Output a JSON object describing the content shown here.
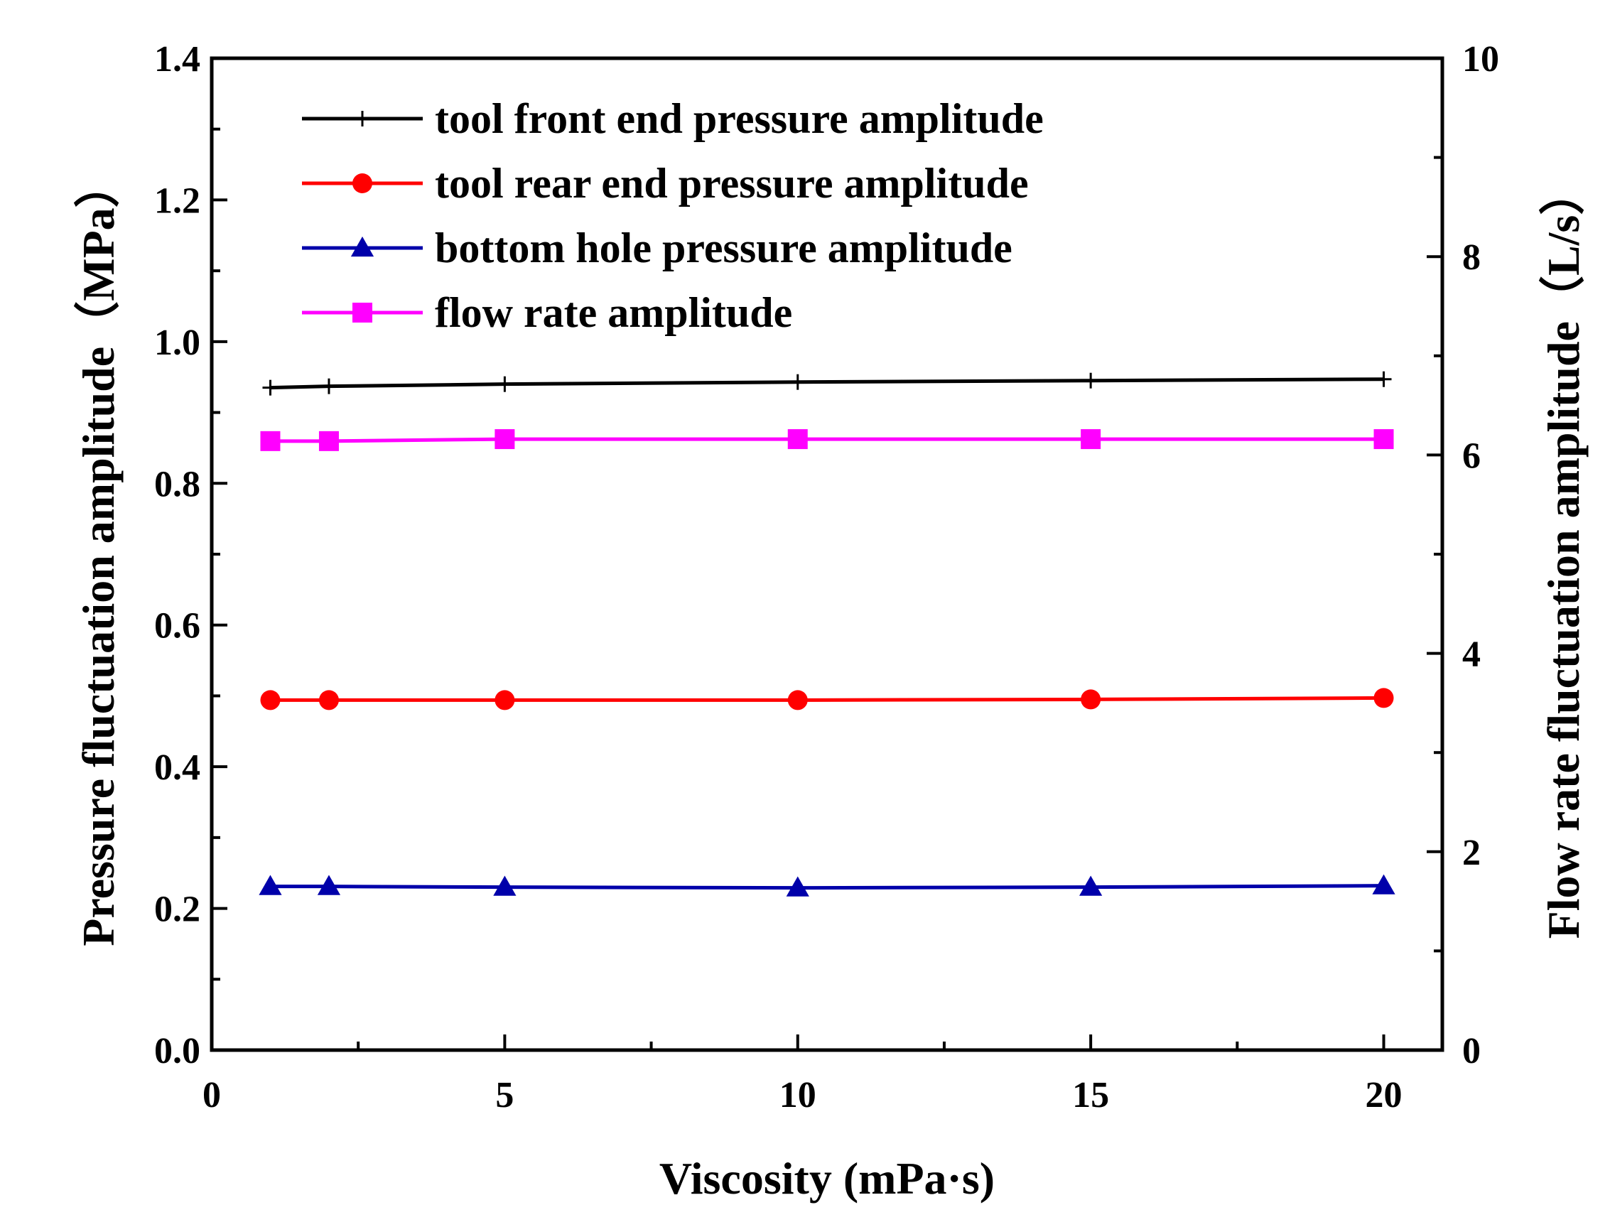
{
  "chart_data": {
    "type": "line",
    "title": "",
    "xlabel": "Viscosity (mPa·s)",
    "ylabel": "Pressure fluctuation amplitude（MPa）",
    "y2label": "Flow rate fluctuation amplitude（L/s）",
    "xlim": [
      0,
      21
    ],
    "ylim": [
      0,
      1.4
    ],
    "y2lim": [
      0,
      10
    ],
    "x_ticks": [
      0,
      5,
      10,
      15,
      20
    ],
    "x_tick_labels": [
      "0",
      "5",
      "10",
      "15",
      "20"
    ],
    "y_ticks": [
      0.0,
      0.2,
      0.4,
      0.6,
      0.8,
      1.0,
      1.2,
      1.4
    ],
    "y_tick_labels": [
      "0.0",
      "0.2",
      "0.4",
      "0.6",
      "0.8",
      "1.0",
      "1.2",
      "1.4"
    ],
    "y2_ticks": [
      0,
      2,
      4,
      6,
      8,
      10
    ],
    "y2_tick_labels": [
      "0",
      "2",
      "4",
      "6",
      "8",
      "10"
    ],
    "legend_position": "top-left",
    "x": [
      1,
      2,
      5,
      10,
      15,
      20
    ],
    "series": [
      {
        "name": "tool front end pressure amplitude",
        "axis": "left",
        "color": "#000000",
        "marker": "plus",
        "values": [
          0.935,
          0.937,
          0.94,
          0.943,
          0.945,
          0.947
        ]
      },
      {
        "name": "tool rear end pressure amplitude",
        "axis": "left",
        "color": "#ff0000",
        "marker": "circle",
        "values": [
          0.494,
          0.494,
          0.494,
          0.494,
          0.495,
          0.497
        ]
      },
      {
        "name": "bottom hole pressure amplitude",
        "axis": "left",
        "color": "#0000aa",
        "marker": "triangle",
        "values": [
          0.231,
          0.231,
          0.23,
          0.229,
          0.23,
          0.232
        ]
      },
      {
        "name": "flow rate amplitude",
        "axis": "right",
        "color": "#ff00ff",
        "marker": "square",
        "values": [
          6.14,
          6.14,
          6.16,
          6.16,
          6.16,
          6.16
        ]
      }
    ]
  }
}
